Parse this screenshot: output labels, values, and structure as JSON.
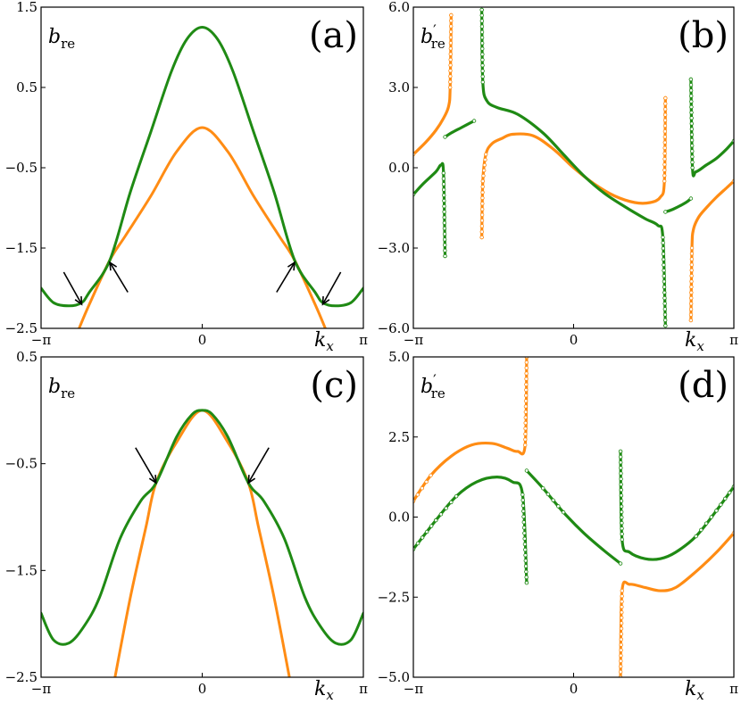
{
  "figure": {
    "x_tick_labels": [
      "−π",
      "0",
      "π"
    ],
    "x_axis_label": "k",
    "x_axis_sub": "x",
    "colors": {
      "orange": "#ff8c14",
      "green": "#1f8a14",
      "arrow": "#000000"
    }
  },
  "chart_data": [
    {
      "type": "line",
      "panel_label": "(a)",
      "ylabel_main": "b",
      "ylabel_sub": "re",
      "ylabel_prime": "",
      "xlim": [
        -3.14159,
        3.14159
      ],
      "ylim": [
        -2.5,
        1.5
      ],
      "yticks": [
        "1.5",
        "0.5",
        "−0.5",
        "−1.5",
        "−2.5"
      ],
      "series": [
        {
          "color": "orange",
          "points": [
            [
              -2.4,
              -2.5
            ],
            [
              -2.2,
              -2.2
            ],
            [
              -1.8,
              -1.65
            ],
            [
              -1.5,
              -1.35
            ],
            [
              -1.0,
              -0.85
            ],
            [
              -0.5,
              -0.3
            ],
            [
              0.0,
              0.0
            ],
            [
              0.5,
              -0.3
            ],
            [
              1.0,
              -0.85
            ],
            [
              1.5,
              -1.35
            ],
            [
              1.8,
              -1.65
            ],
            [
              2.2,
              -2.2
            ],
            [
              2.4,
              -2.5
            ]
          ]
        },
        {
          "color": "green",
          "points": [
            [
              -3.1416,
              -2.0
            ],
            [
              -2.9,
              -2.18
            ],
            [
              -2.6,
              -2.22
            ],
            [
              -2.35,
              -2.18
            ],
            [
              -2.2,
              -2.05
            ],
            [
              -1.8,
              -1.65
            ],
            [
              -1.4,
              -0.8
            ],
            [
              -1.0,
              -0.05
            ],
            [
              -0.6,
              0.7
            ],
            [
              -0.3,
              1.1
            ],
            [
              0.0,
              1.25
            ],
            [
              0.3,
              1.1
            ],
            [
              0.6,
              0.7
            ],
            [
              1.0,
              -0.05
            ],
            [
              1.4,
              -0.8
            ],
            [
              1.8,
              -1.65
            ],
            [
              2.2,
              -2.05
            ],
            [
              2.35,
              -2.18
            ],
            [
              2.6,
              -2.22
            ],
            [
              2.9,
              -2.18
            ],
            [
              3.1416,
              -2.0
            ]
          ]
        }
      ],
      "arrows": [
        {
          "from": [
            -2.7,
            -1.8
          ],
          "to": [
            -2.35,
            -2.2
          ]
        },
        {
          "from": [
            -1.45,
            -2.05
          ],
          "to": [
            -1.8,
            -1.68
          ]
        },
        {
          "from": [
            1.45,
            -2.05
          ],
          "to": [
            1.8,
            -1.68
          ]
        },
        {
          "from": [
            2.7,
            -1.8
          ],
          "to": [
            2.35,
            -2.2
          ]
        }
      ]
    },
    {
      "type": "scatter",
      "panel_label": "(b)",
      "ylabel_main": "b",
      "ylabel_sub": "re",
      "ylabel_prime": "′",
      "xlim": [
        -3.14159,
        3.14159
      ],
      "ylim": [
        -6.0,
        6.0
      ],
      "yticks": [
        "6.0",
        "3.0",
        "0.0",
        "−3.0",
        "−6.0"
      ],
      "series": [
        {
          "color": "orange",
          "segments": [
            [
              [
                -3.1416,
                0.5
              ],
              [
                -2.9,
                0.95
              ],
              [
                -2.7,
                1.4
              ],
              [
                -2.55,
                1.85
              ],
              [
                -2.45,
                2.3
              ],
              [
                -2.42,
                3.0
              ],
              [
                -2.4,
                5.7
              ]
            ],
            [
              [
                -1.8,
                -2.6
              ],
              [
                -1.78,
                -0.5
              ],
              [
                -1.72,
                0.5
              ],
              [
                -1.6,
                0.9
              ],
              [
                -1.4,
                1.1
              ],
              [
                -1.2,
                1.25
              ],
              [
                -0.8,
                1.2
              ],
              [
                -0.4,
                0.7
              ],
              [
                0.0,
                0.0
              ],
              [
                0.4,
                -0.6
              ],
              [
                0.8,
                -1.05
              ],
              [
                1.2,
                -1.3
              ],
              [
                1.5,
                -1.3
              ],
              [
                1.7,
                -1.1
              ],
              [
                1.78,
                -0.5
              ],
              [
                1.8,
                2.6
              ]
            ],
            [
              [
                2.3,
                -5.7
              ],
              [
                2.32,
                -3.0
              ],
              [
                2.35,
                -2.3
              ],
              [
                2.45,
                -1.85
              ],
              [
                2.6,
                -1.5
              ],
              [
                2.8,
                -1.1
              ],
              [
                3.0,
                -0.75
              ],
              [
                3.1416,
                -0.5
              ]
            ]
          ]
        },
        {
          "color": "green",
          "segments": [
            [
              [
                -3.1416,
                -1.0
              ],
              [
                -2.95,
                -0.6
              ],
              [
                -2.7,
                -0.15
              ],
              [
                -2.6,
                0.1
              ],
              [
                -2.55,
                -0.2
              ],
              [
                -2.52,
                -3.3
              ]
            ],
            [
              [
                -2.52,
                1.15
              ],
              [
                -2.4,
                1.3
              ],
              [
                -2.2,
                1.5
              ],
              [
                -1.95,
                1.75
              ]
            ],
            [
              [
                -1.8,
                5.9
              ],
              [
                -1.78,
                3.2
              ],
              [
                -1.7,
                2.5
              ],
              [
                -1.5,
                2.25
              ],
              [
                -1.1,
                2.0
              ],
              [
                -0.6,
                1.3
              ],
              [
                -0.2,
                0.5
              ],
              [
                0.2,
                -0.3
              ],
              [
                0.6,
                -0.95
              ],
              [
                1.0,
                -1.45
              ],
              [
                1.4,
                -1.9
              ],
              [
                1.65,
                -2.15
              ],
              [
                1.75,
                -2.6
              ],
              [
                1.8,
                -5.9
              ]
            ],
            [
              [
                1.8,
                -1.65
              ],
              [
                1.95,
                -1.55
              ],
              [
                2.2,
                -1.3
              ],
              [
                2.3,
                -1.15
              ]
            ],
            [
              [
                2.3,
                3.3
              ],
              [
                2.33,
                0.0
              ],
              [
                2.4,
                -0.15
              ],
              [
                2.6,
                0.1
              ],
              [
                2.8,
                0.35
              ],
              [
                3.0,
                0.7
              ],
              [
                3.1416,
                1.0
              ]
            ]
          ]
        }
      ]
    },
    {
      "type": "line",
      "panel_label": "(c)",
      "ylabel_main": "b",
      "ylabel_sub": "re",
      "ylabel_prime": "",
      "xlim": [
        -3.14159,
        3.14159
      ],
      "ylim": [
        -2.5,
        0.5
      ],
      "yticks": [
        "0.5",
        "−0.5",
        "−1.5",
        "−2.5"
      ],
      "series": [
        {
          "color": "orange",
          "points": [
            [
              -1.7,
              -2.5
            ],
            [
              -1.4,
              -1.75
            ],
            [
              -1.1,
              -1.1
            ],
            [
              -0.9,
              -0.68
            ],
            [
              -0.5,
              -0.3
            ],
            [
              0.0,
              0.0
            ],
            [
              0.5,
              -0.3
            ],
            [
              0.9,
              -0.68
            ],
            [
              1.1,
              -1.1
            ],
            [
              1.4,
              -1.75
            ],
            [
              1.7,
              -2.5
            ]
          ]
        },
        {
          "color": "green",
          "points": [
            [
              -3.1416,
              -1.9
            ],
            [
              -2.9,
              -2.15
            ],
            [
              -2.6,
              -2.18
            ],
            [
              -2.3,
              -2.02
            ],
            [
              -2.0,
              -1.75
            ],
            [
              -1.6,
              -1.2
            ],
            [
              -1.2,
              -0.85
            ],
            [
              -0.9,
              -0.68
            ],
            [
              -0.5,
              -0.25
            ],
            [
              -0.2,
              -0.04
            ],
            [
              0.0,
              0.0
            ],
            [
              0.2,
              -0.04
            ],
            [
              0.5,
              -0.25
            ],
            [
              0.9,
              -0.68
            ],
            [
              1.2,
              -0.85
            ],
            [
              1.6,
              -1.2
            ],
            [
              2.0,
              -1.75
            ],
            [
              2.3,
              -2.02
            ],
            [
              2.6,
              -2.18
            ],
            [
              2.9,
              -2.15
            ],
            [
              3.1416,
              -1.9
            ]
          ]
        }
      ],
      "arrows": [
        {
          "from": [
            -1.3,
            -0.35
          ],
          "to": [
            -0.9,
            -0.68
          ]
        },
        {
          "from": [
            1.3,
            -0.35
          ],
          "to": [
            0.9,
            -0.68
          ]
        }
      ]
    },
    {
      "type": "scatter",
      "panel_label": "(d)",
      "ylabel_main": "b",
      "ylabel_sub": "re",
      "ylabel_prime": "′",
      "xlim": [
        -3.14159,
        3.14159
      ],
      "ylim": [
        -5.0,
        5.0
      ],
      "yticks": [
        "5.0",
        "2.5",
        "0.0",
        "−2.5",
        "−5.0"
      ],
      "series": [
        {
          "color": "orange",
          "segments": [
            [
              [
                -3.1416,
                0.5
              ],
              [
                -2.8,
                1.3
              ],
              [
                -2.4,
                1.9
              ],
              [
                -2.0,
                2.25
              ],
              [
                -1.6,
                2.3
              ],
              [
                -1.3,
                2.15
              ],
              [
                -1.1,
                2.05
              ],
              [
                -0.95,
                2.25
              ],
              [
                -0.92,
                5.0
              ]
            ],
            [
              [
                0.92,
                -5.0
              ],
              [
                0.95,
                -2.3
              ],
              [
                1.1,
                -2.1
              ],
              [
                1.4,
                -2.2
              ],
              [
                1.7,
                -2.3
              ],
              [
                2.0,
                -2.2
              ],
              [
                2.4,
                -1.7
              ],
              [
                2.8,
                -1.1
              ],
              [
                3.1416,
                -0.5
              ]
            ]
          ]
        },
        {
          "color": "green",
          "segments": [
            [
              [
                -3.1416,
                -1.0
              ],
              [
                -2.7,
                -0.1
              ],
              [
                -2.3,
                0.65
              ],
              [
                -1.9,
                1.1
              ],
              [
                -1.5,
                1.25
              ],
              [
                -1.2,
                1.1
              ],
              [
                -1.0,
                0.7
              ],
              [
                -0.92,
                -2.05
              ]
            ],
            [
              [
                -0.92,
                1.45
              ],
              [
                -0.6,
                0.9
              ],
              [
                -0.2,
                0.15
              ],
              [
                0.2,
                -0.5
              ],
              [
                0.6,
                -1.05
              ],
              [
                0.92,
                -1.45
              ]
            ],
            [
              [
                0.92,
                2.05
              ],
              [
                0.95,
                -0.7
              ],
              [
                1.1,
                -1.1
              ],
              [
                1.4,
                -1.3
              ],
              [
                1.7,
                -1.3
              ],
              [
                2.0,
                -1.1
              ],
              [
                2.4,
                -0.6
              ],
              [
                2.8,
                0.2
              ],
              [
                3.1416,
                0.95
              ]
            ]
          ]
        }
      ]
    }
  ]
}
